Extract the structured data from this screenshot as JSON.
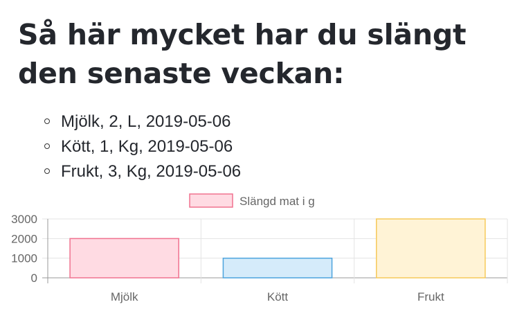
{
  "page": {
    "title": "Så här mycket har du slängt den senaste veckan:",
    "items": [
      "Mjölk, 2, L, 2019-05-06",
      "Kött, 1, Kg, 2019-05-06",
      "Frukt, 3, Kg, 2019-05-06"
    ]
  },
  "chart_data": {
    "type": "bar",
    "categories": [
      "Mjölk",
      "Kött",
      "Frukt"
    ],
    "series": [
      {
        "name": "Slängd mat i g",
        "values": [
          2000,
          1000,
          3000
        ]
      }
    ],
    "ylim": [
      0,
      3000
    ],
    "yticks": [
      0,
      1000,
      2000,
      3000
    ],
    "grid": true,
    "legend": "top-center",
    "legend_color": "#f0728f",
    "bar_fills": [
      "#ffdbe3",
      "#d5ebfa",
      "#fff3d6"
    ],
    "bar_strokes": [
      "#f0728f",
      "#4ca3dd",
      "#f6c95a"
    ]
  }
}
